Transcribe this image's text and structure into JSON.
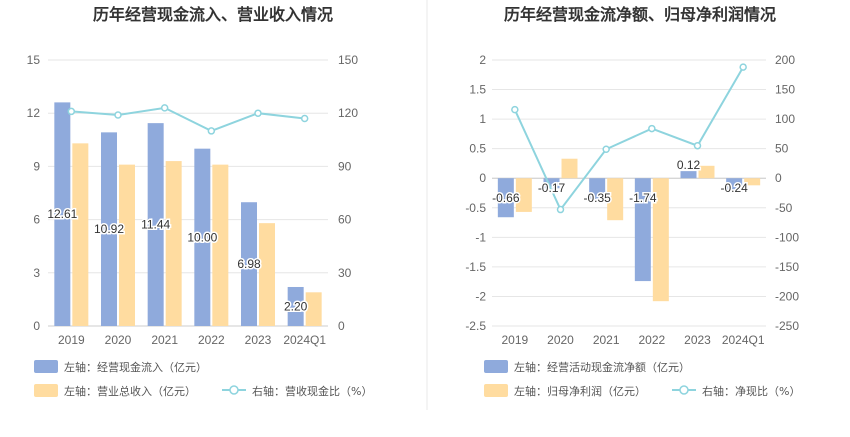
{
  "colors": {
    "blue": "#8FAADC",
    "orange": "#FFDCA0",
    "line": "#8ED4DE",
    "divider": "#e9e9e9"
  },
  "chart_data": [
    {
      "type": "bar",
      "title": "历年经营现金流入、营业收入情况",
      "categories": [
        "2019",
        "2020",
        "2021",
        "2022",
        "2023",
        "2024Q1"
      ],
      "left_axis": {
        "min": 0,
        "max": 15,
        "ticks": [
          "0",
          "3",
          "6",
          "9",
          "12",
          "15"
        ]
      },
      "right_axis": {
        "min": 0,
        "max": 150,
        "ticks": [
          "0",
          "30",
          "60",
          "90",
          "120",
          "150"
        ]
      },
      "series": [
        {
          "name": "左轴：经营现金流入（亿元）",
          "axis": "left",
          "kind": "bar",
          "values": [
            12.61,
            10.92,
            11.44,
            10.0,
            6.98,
            2.2
          ],
          "labels": [
            "12.61",
            "10.92",
            "11.44",
            "10.00",
            "6.98",
            "2.20"
          ]
        },
        {
          "name": "左轴：营业总收入（亿元）",
          "axis": "left",
          "kind": "bar",
          "values": [
            10.3,
            9.1,
            9.3,
            9.1,
            5.8,
            1.9
          ]
        },
        {
          "name": "右轴：营收现金比（%）",
          "axis": "right",
          "kind": "line",
          "values": [
            121,
            119,
            123,
            110,
            120,
            117
          ]
        }
      ],
      "legend_placement": "bottom-left"
    },
    {
      "type": "bar",
      "title": "历年经营现金流净额、归母净利润情况",
      "categories": [
        "2019",
        "2020",
        "2021",
        "2022",
        "2023",
        "2024Q1"
      ],
      "left_axis": {
        "min": -2.5,
        "max": 2,
        "ticks": [
          "-2.5",
          "-2",
          "-1.5",
          "-1",
          "-0.5",
          "0",
          "0.5",
          "1",
          "1.5",
          "2"
        ]
      },
      "right_axis": {
        "min": -250,
        "max": 200,
        "ticks": [
          "-250",
          "-200",
          "-150",
          "-100",
          "-50",
          "0",
          "50",
          "100",
          "150",
          "200"
        ]
      },
      "series": [
        {
          "name": "左轴：经营活动现金流净额（亿元）",
          "axis": "left",
          "kind": "bar",
          "values": [
            -0.66,
            -0.17,
            -0.35,
            -1.74,
            0.12,
            -0.24
          ],
          "labels": [
            "-0.66",
            "-0.17",
            "-0.35",
            "-1.74",
            "0.12",
            "-0.24"
          ]
        },
        {
          "name": "左轴：归母净利润（亿元）",
          "axis": "left",
          "kind": "bar",
          "values": [
            -0.57,
            0.33,
            -0.71,
            -2.08,
            0.21,
            -0.12
          ]
        },
        {
          "name": "右轴：净现比（%）",
          "axis": "right",
          "kind": "line",
          "values": [
            116,
            -53,
            49,
            84,
            55,
            188
          ]
        }
      ],
      "legend_placement": "bottom-left"
    }
  ]
}
